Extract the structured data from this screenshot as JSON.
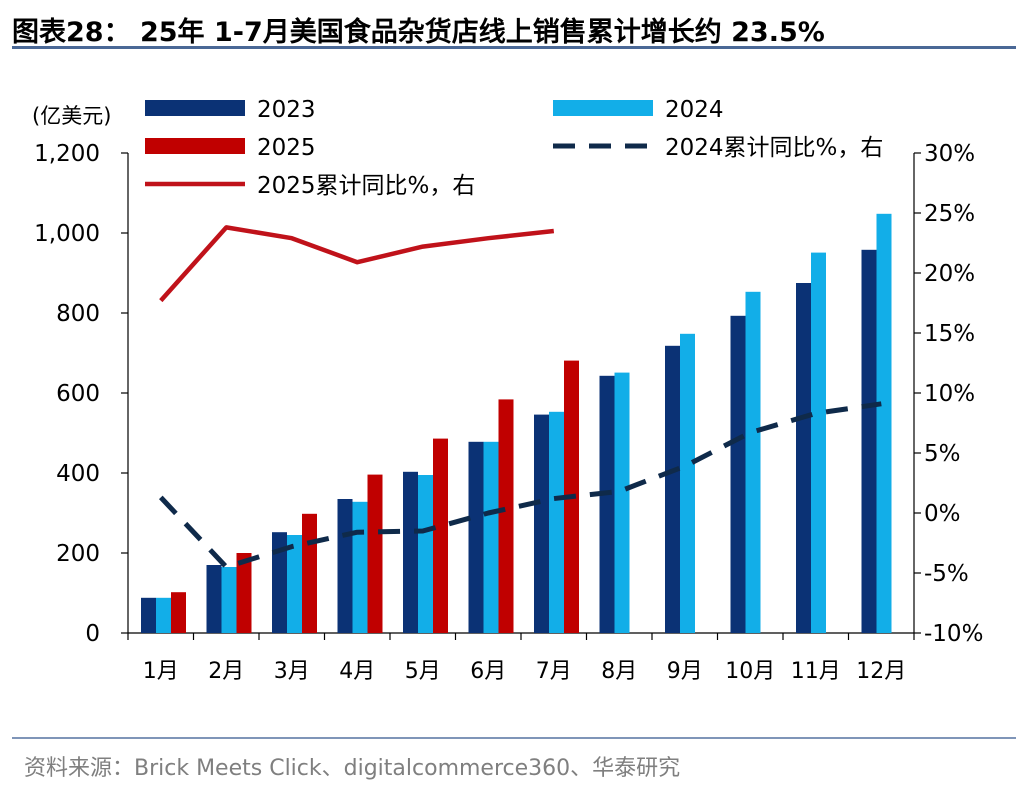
{
  "title": "图表28：  25年 1-7月美国食品杂货店线上销售累计增长约 23.5%",
  "source": "资料来源：Brick Meets Click、digitalcommerce360、华泰研究",
  "colors": {
    "s2023": "#0b3275",
    "s2024": "#12aee8",
    "s2025": "#c00000",
    "cum2024": "#0f2a4a",
    "cum2025": "#c0121a"
  },
  "chart_data": {
    "type": "bar",
    "categories": [
      "1月",
      "2月",
      "3月",
      "4月",
      "5月",
      "6月",
      "7月",
      "8月",
      "9月",
      "10月",
      "11月",
      "12月"
    ],
    "ylabel": "(亿美元)",
    "ylim": [
      0,
      1200
    ],
    "y_ticks": [
      "0",
      "200",
      "400",
      "600",
      "800",
      "1,000",
      "1,200"
    ],
    "y2lim": [
      -10,
      30
    ],
    "y2_ticks": [
      "-10%",
      "-5%",
      "0%",
      "5%",
      "10%",
      "15%",
      "20%",
      "25%",
      "30%"
    ],
    "legend": [
      {
        "label": "2023"
      },
      {
        "label": "2024"
      },
      {
        "label": "2025"
      },
      {
        "label": "2024累计同比%，右"
      },
      {
        "label": "2025累计同比%，右"
      }
    ],
    "bar_series": [
      {
        "name": "2023",
        "values": [
          88,
          170,
          252,
          335,
          403,
          478,
          546,
          643,
          718,
          793,
          875,
          958
        ]
      },
      {
        "name": "2024",
        "values": [
          88,
          165,
          245,
          328,
          395,
          478,
          553,
          651,
          748,
          853,
          951,
          1048
        ]
      },
      {
        "name": "2025",
        "values": [
          102,
          200,
          298,
          396,
          486,
          584,
          681,
          null,
          null,
          null,
          null,
          null
        ]
      }
    ],
    "line_series": [
      {
        "name": "2024累计同比%，右",
        "axis": "right",
        "style": "dashed",
        "values": [
          1.3,
          -4.5,
          -2.8,
          -1.6,
          -1.5,
          0.0,
          1.2,
          1.8,
          3.9,
          6.7,
          8.3,
          9.1
        ]
      },
      {
        "name": "2025累计同比%，右",
        "axis": "right",
        "style": "solid",
        "values": [
          17.7,
          23.8,
          22.9,
          20.9,
          22.2,
          22.9,
          23.5,
          null,
          null,
          null,
          null,
          null
        ]
      }
    ]
  }
}
